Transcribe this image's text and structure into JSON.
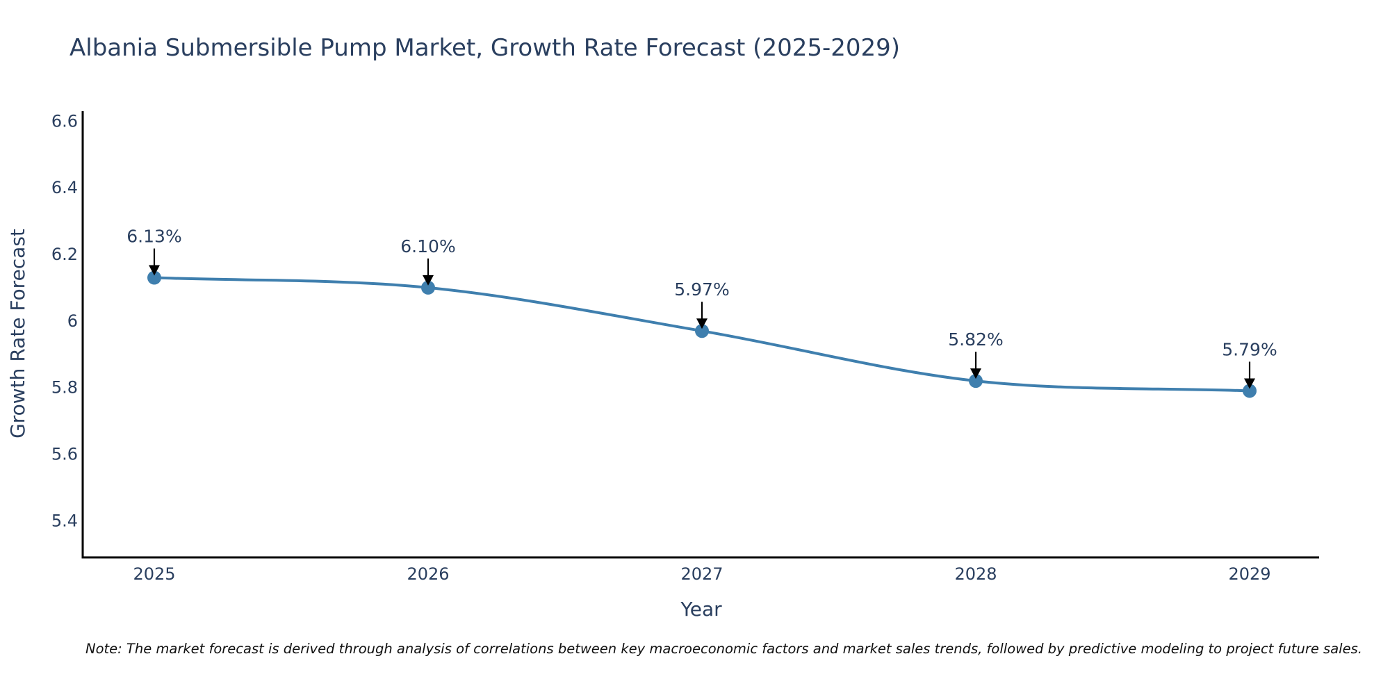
{
  "chart_data": {
    "type": "line",
    "title": "Albania Submersible Pump Market, Growth Rate Forecast (2025-2029)",
    "xlabel": "Year",
    "ylabel": "Growth Rate Forecast",
    "categories": [
      "2025",
      "2026",
      "2027",
      "2028",
      "2029"
    ],
    "series": [
      {
        "name": "Growth Rate Forecast",
        "values": [
          6.13,
          6.1,
          5.97,
          5.82,
          5.79
        ],
        "labels": [
          "6.13%",
          "6.10%",
          "5.97%",
          "5.82%",
          "5.79%"
        ],
        "color": "#3f7fae",
        "marker_color": "#3f7fae",
        "line_shape": "spline"
      }
    ],
    "ylim": [
      5.29,
      6.63
    ],
    "yticks": [
      5.4,
      5.6,
      5.8,
      6.0,
      6.2,
      6.4,
      6.6
    ],
    "ytick_labels": [
      "5.4",
      "5.6",
      "5.8",
      "6",
      "6.2",
      "6.4",
      "6.6"
    ],
    "grid": false,
    "arrow_color": "#000000",
    "axis_color": "#000000"
  },
  "note": "Note: The market forecast is derived through analysis of correlations between key macroeconomic factors and market sales trends, followed by predictive modeling to project future sales."
}
